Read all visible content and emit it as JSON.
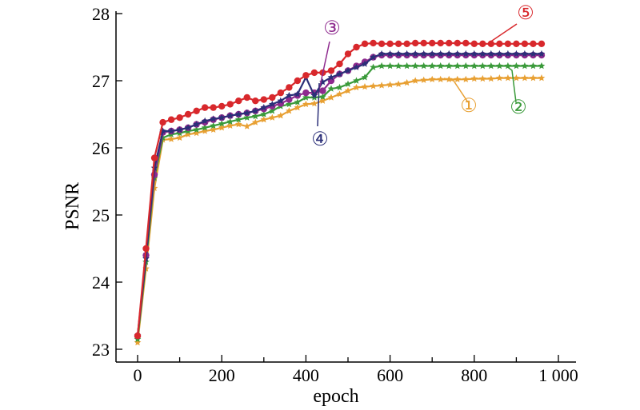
{
  "chart_data": {
    "type": "line",
    "title": "",
    "xlabel": "epoch",
    "ylabel": "PSNR",
    "xlim": [
      0,
      1000
    ],
    "ylim": [
      23,
      28
    ],
    "xticks": [
      0,
      200,
      400,
      600,
      800,
      1000
    ],
    "xtick_labels": [
      "0",
      "200",
      "400",
      "600",
      "800",
      "1 000"
    ],
    "yticks": [
      23,
      24,
      25,
      26,
      27,
      28
    ],
    "ytick_labels": [
      "23",
      "24",
      "25",
      "26",
      "27",
      "28"
    ],
    "grid": false,
    "legend": "none",
    "x": [
      0,
      20,
      40,
      60,
      80,
      100,
      120,
      140,
      160,
      180,
      200,
      220,
      240,
      260,
      280,
      300,
      320,
      340,
      360,
      380,
      400,
      420,
      440,
      460,
      480,
      500,
      520,
      540,
      560,
      580,
      600,
      620,
      640,
      660,
      680,
      700,
      720,
      740,
      760,
      780,
      800,
      820,
      840,
      860,
      880,
      900,
      920,
      940,
      960
    ],
    "series": [
      {
        "callout": "①",
        "color": "#e8a033",
        "marker": "star",
        "values": [
          23.1,
          24.2,
          25.4,
          26.12,
          26.13,
          26.15,
          26.2,
          26.22,
          26.25,
          26.27,
          26.3,
          26.33,
          26.35,
          26.32,
          26.38,
          26.42,
          26.45,
          26.48,
          26.55,
          26.6,
          26.65,
          26.66,
          26.7,
          26.75,
          26.8,
          26.85,
          26.9,
          26.91,
          26.92,
          26.93,
          26.94,
          26.95,
          26.97,
          27.0,
          27.01,
          27.02,
          27.02,
          27.02,
          27.02,
          27.02,
          27.03,
          27.03,
          27.03,
          27.04,
          27.04,
          27.04,
          27.04,
          27.04,
          27.04
        ]
      },
      {
        "callout": "②",
        "color": "#3a9a3a",
        "marker": "star",
        "values": [
          23.15,
          24.3,
          25.55,
          26.15,
          26.2,
          26.22,
          26.25,
          26.27,
          26.3,
          26.33,
          26.36,
          26.39,
          26.42,
          26.45,
          26.47,
          26.5,
          26.55,
          26.62,
          26.65,
          26.68,
          26.75,
          26.75,
          26.76,
          26.88,
          26.9,
          26.95,
          27.0,
          27.05,
          27.2,
          27.22,
          27.22,
          27.22,
          27.22,
          27.22,
          27.22,
          27.22,
          27.22,
          27.22,
          27.22,
          27.22,
          27.22,
          27.22,
          27.22,
          27.22,
          27.22,
          27.22,
          27.22,
          27.22,
          27.22
        ]
      },
      {
        "callout": "③",
        "color": "#8e2a8e",
        "marker": "dot",
        "values": [
          23.2,
          24.4,
          25.6,
          26.23,
          26.25,
          26.27,
          26.3,
          26.35,
          26.38,
          26.42,
          26.45,
          26.48,
          26.5,
          26.52,
          26.55,
          26.58,
          26.62,
          26.66,
          26.72,
          26.78,
          26.82,
          26.82,
          26.85,
          27.0,
          27.1,
          27.15,
          27.22,
          27.28,
          27.35,
          27.38,
          27.38,
          27.38,
          27.38,
          27.38,
          27.38,
          27.38,
          27.38,
          27.38,
          27.38,
          27.38,
          27.38,
          27.38,
          27.38,
          27.38,
          27.38,
          27.38,
          27.38,
          27.38,
          27.38
        ]
      },
      {
        "callout": "④",
        "color": "#2b2f78",
        "marker": "star",
        "values": [
          23.2,
          24.35,
          25.7,
          26.25,
          26.25,
          26.27,
          26.3,
          26.35,
          26.4,
          26.43,
          26.45,
          26.48,
          26.5,
          26.52,
          26.55,
          26.6,
          26.65,
          26.7,
          26.78,
          26.8,
          27.05,
          26.78,
          26.98,
          27.05,
          27.1,
          27.15,
          27.2,
          27.25,
          27.35,
          27.4,
          27.4,
          27.4,
          27.4,
          27.4,
          27.4,
          27.4,
          27.4,
          27.4,
          27.4,
          27.4,
          27.4,
          27.4,
          27.4,
          27.4,
          27.4,
          27.4,
          27.4,
          27.4,
          27.4
        ]
      },
      {
        "callout": "⑤",
        "color": "#d8282c",
        "marker": "dot",
        "values": [
          23.2,
          24.5,
          25.85,
          26.38,
          26.42,
          26.45,
          26.5,
          26.55,
          26.6,
          26.6,
          26.62,
          26.65,
          26.7,
          26.75,
          26.7,
          26.72,
          26.75,
          26.82,
          26.9,
          27.0,
          27.08,
          27.12,
          27.12,
          27.15,
          27.25,
          27.4,
          27.5,
          27.55,
          27.56,
          27.55,
          27.55,
          27.55,
          27.55,
          27.56,
          27.56,
          27.56,
          27.56,
          27.56,
          27.56,
          27.56,
          27.55,
          27.55,
          27.55,
          27.55,
          27.55,
          27.55,
          27.55,
          27.55,
          27.55
        ]
      }
    ]
  }
}
